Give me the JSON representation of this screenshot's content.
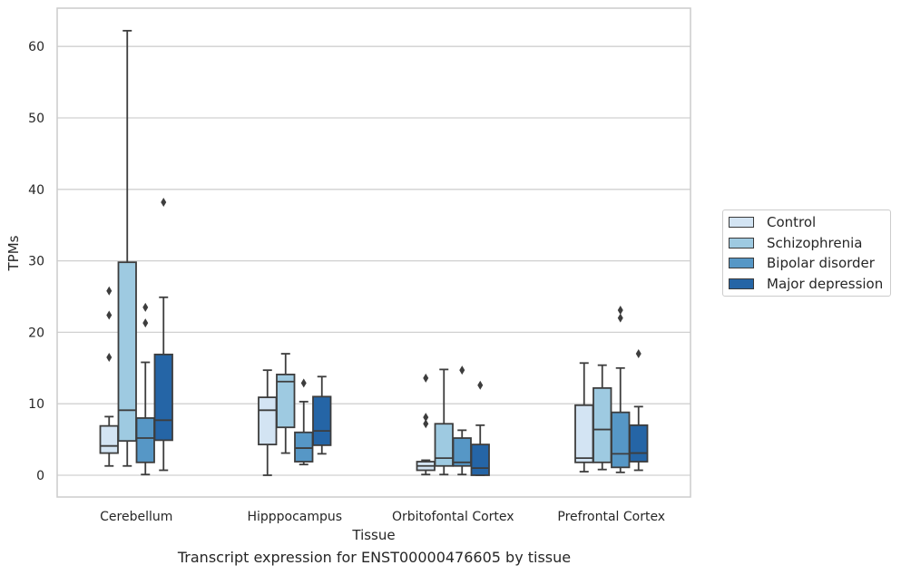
{
  "caption": "Transcript expression for ENST00000476605 by tissue",
  "chart_data": {
    "type": "box",
    "xlabel": "Tissue",
    "ylabel": "TPMs",
    "ylim": [
      -3,
      65
    ],
    "yticks": [
      0,
      10,
      20,
      30,
      40,
      50,
      60
    ],
    "grid": true,
    "legend_position": "right",
    "categories": [
      "Cerebellum",
      "Hipppocampus",
      "Orbitofontal Cortex",
      "Prefrontal Cortex"
    ],
    "series": [
      {
        "name": "Control",
        "color": "#d3e4f3",
        "boxes": [
          {
            "min": 1.3,
            "q1": 3.1,
            "median": 4.1,
            "q3": 6.9,
            "max": 8.2,
            "outliers": [
              16.5,
              22.4,
              25.8
            ]
          },
          {
            "min": 0.0,
            "q1": 4.3,
            "median": 9.1,
            "q3": 10.9,
            "max": 14.7,
            "outliers": []
          },
          {
            "min": 0.1,
            "q1": 0.7,
            "median": 1.3,
            "q3": 1.9,
            "max": 2.1,
            "outliers": [
              7.2,
              8.1,
              13.6
            ]
          },
          {
            "min": 0.5,
            "q1": 1.8,
            "median": 2.4,
            "q3": 9.8,
            "max": 15.7,
            "outliers": []
          }
        ]
      },
      {
        "name": "Schizophrenia",
        "color": "#9ecae1",
        "boxes": [
          {
            "min": 1.3,
            "q1": 4.8,
            "median": 9.1,
            "q3": 29.8,
            "max": 62.2,
            "outliers": []
          },
          {
            "min": 3.1,
            "q1": 6.7,
            "median": 13.1,
            "q3": 14.1,
            "max": 17.0,
            "outliers": []
          },
          {
            "min": 0.1,
            "q1": 1.3,
            "median": 2.4,
            "q3": 7.2,
            "max": 14.8,
            "outliers": []
          },
          {
            "min": 0.8,
            "q1": 1.8,
            "median": 6.4,
            "q3": 12.2,
            "max": 15.4,
            "outliers": []
          }
        ]
      },
      {
        "name": "Bipolar disorder",
        "color": "#5697c6",
        "boxes": [
          {
            "min": 0.1,
            "q1": 1.8,
            "median": 5.2,
            "q3": 8.0,
            "max": 15.8,
            "outliers": [
              21.3,
              23.5
            ]
          },
          {
            "min": 1.5,
            "q1": 1.9,
            "median": 3.8,
            "q3": 6.0,
            "max": 10.3,
            "outliers": [
              12.9
            ]
          },
          {
            "min": 0.1,
            "q1": 1.3,
            "median": 1.8,
            "q3": 5.2,
            "max": 6.3,
            "outliers": [
              14.7
            ]
          },
          {
            "min": 0.4,
            "q1": 1.1,
            "median": 3.0,
            "q3": 8.8,
            "max": 15.0,
            "outliers": [
              22.0,
              23.1
            ]
          }
        ]
      },
      {
        "name": "Major depression",
        "color": "#2565a6",
        "boxes": [
          {
            "min": 0.7,
            "q1": 4.9,
            "median": 7.7,
            "q3": 16.9,
            "max": 24.9,
            "outliers": [
              38.2
            ]
          },
          {
            "min": 3.0,
            "q1": 4.2,
            "median": 6.2,
            "q3": 11.0,
            "max": 13.8,
            "outliers": []
          },
          {
            "min": 0.0,
            "q1": 0.0,
            "median": 1.0,
            "q3": 4.3,
            "max": 7.0,
            "outliers": [
              12.6
            ]
          },
          {
            "min": 0.7,
            "q1": 1.9,
            "median": 3.1,
            "q3": 7.0,
            "max": 9.6,
            "outliers": [
              17.0
            ]
          }
        ]
      }
    ]
  }
}
